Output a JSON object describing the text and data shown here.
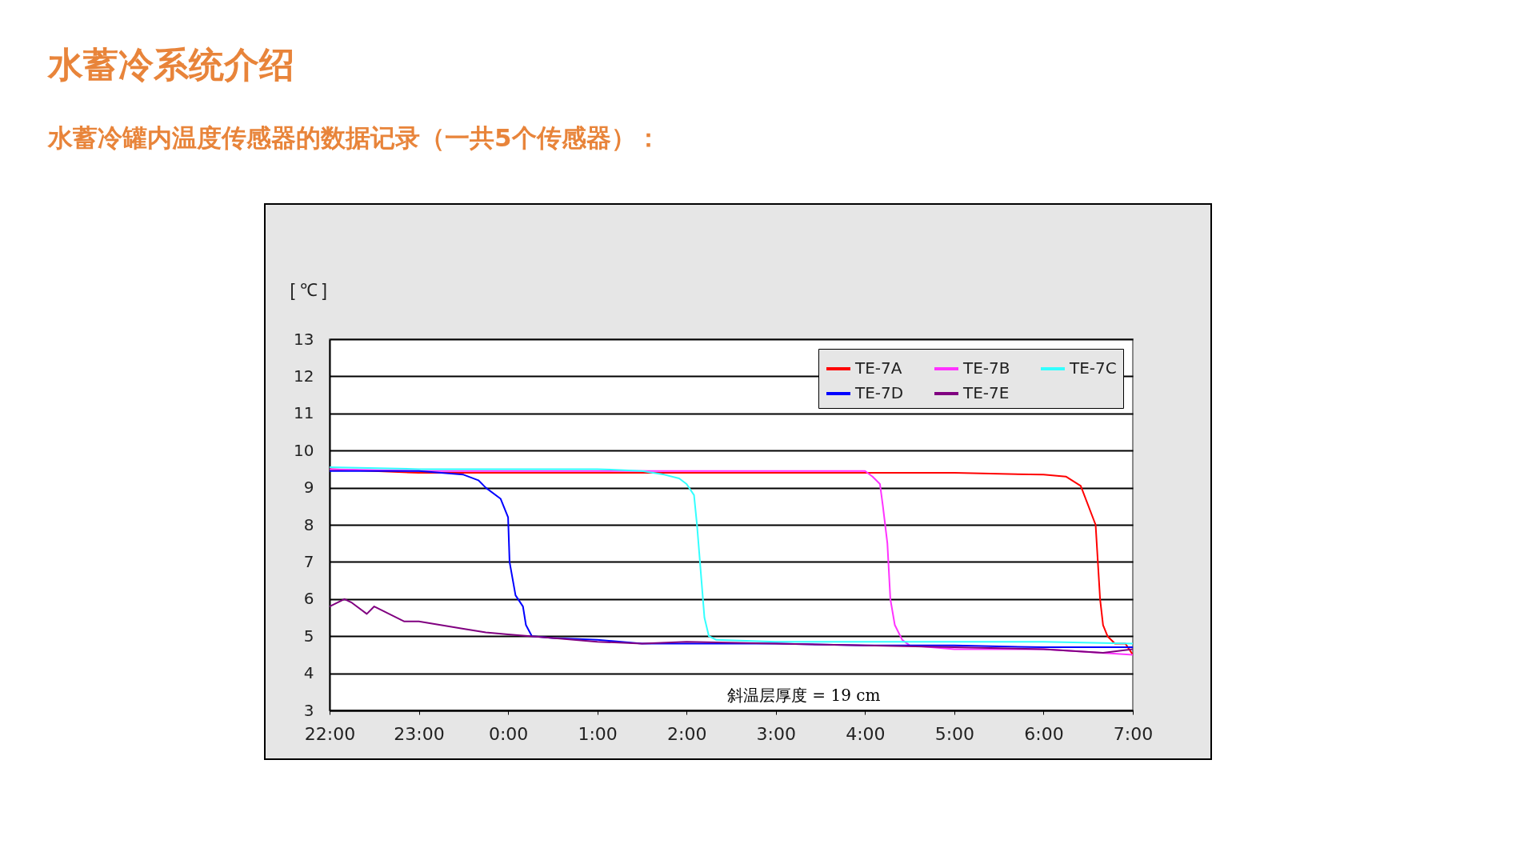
{
  "chart_data": {
    "type": "line",
    "title": "水蓄冷系统介绍",
    "subtitle": "水蓄冷罐内温度传感器的数据记录（一共5个传感器）：",
    "ylabel": "[ ℃ ]",
    "series": [
      {
        "name": "TE-7A",
        "color": "#ff0000",
        "x": [
          "--01-01T22:00",
          "--01-01T23:00",
          "--01-02T00:00",
          "--01-02T01:00",
          "--01-02T02:00",
          "--01-02T03:00",
          "--01-02T04:00",
          "--01-02T05:00",
          "--01-02T06:00",
          "--01-02T06:15",
          "--01-02T06:25",
          "--01-02T06:35",
          "--01-02T06:38",
          "--01-02T06:40",
          "--01-02T06:43",
          "--01-02T06:48",
          "--01-02T06:55",
          "--01-02T07:00"
        ],
        "values": [
          9.5,
          9.4,
          9.4,
          9.4,
          9.4,
          9.4,
          9.4,
          9.4,
          9.35,
          9.3,
          9.05,
          8.0,
          6.0,
          5.3,
          5.0,
          4.8,
          4.8,
          4.5
        ]
      },
      {
        "name": "TE-7B",
        "color": "#ff33ff",
        "x": [
          "--01-01T22:00",
          "--01-01T23:00",
          "--01-02T00:00",
          "--01-02T01:00",
          "--01-02T02:00",
          "--01-02T03:00",
          "--01-02T04:00",
          "--01-02T04:05",
          "--01-02T04:10",
          "--01-02T04:12",
          "--01-02T04:15",
          "--01-02T04:17",
          "--01-02T04:20",
          "--01-02T04:25",
          "--01-02T04:30",
          "--01-02T05:00",
          "--01-02T06:00",
          "--01-02T07:00"
        ],
        "values": [
          9.5,
          9.45,
          9.45,
          9.45,
          9.45,
          9.45,
          9.45,
          9.3,
          9.1,
          8.5,
          7.5,
          6.0,
          5.3,
          4.9,
          4.75,
          4.65,
          4.65,
          4.5
        ]
      },
      {
        "name": "TE-7C",
        "color": "#33ffff",
        "x": [
          "--01-01T22:00",
          "--01-01T23:00",
          "--01-02T00:00",
          "--01-02T01:00",
          "--01-02T01:30",
          "--01-02T01:45",
          "--01-02T01:55",
          "--01-02T02:00",
          "--01-02T02:05",
          "--01-02T02:07",
          "--01-02T02:10",
          "--01-02T02:12",
          "--01-02T02:15",
          "--01-02T02:20",
          "--01-02T03:00",
          "--01-02T04:00",
          "--01-02T05:00",
          "--01-02T06:00",
          "--01-02T07:00"
        ],
        "values": [
          9.55,
          9.5,
          9.5,
          9.5,
          9.45,
          9.35,
          9.25,
          9.1,
          8.8,
          8.0,
          6.5,
          5.5,
          5.0,
          4.9,
          4.85,
          4.85,
          4.85,
          4.85,
          4.8
        ]
      },
      {
        "name": "TE-7D",
        "color": "#0000ff",
        "x": [
          "--01-01T22:00",
          "--01-01T23:00",
          "--01-01T23:30",
          "--01-01T23:40",
          "--01-01T23:45",
          "--01-01T23:55",
          "--01-02T00:00",
          "--01-02T00:01",
          "--01-02T00:05",
          "--01-02T00:10",
          "--01-02T00:12",
          "--01-02T00:16",
          "--01-02T00:30",
          "--01-02T01:00",
          "--01-02T01:30",
          "--01-02T02:00",
          "--01-02T03:00",
          "--01-02T04:00",
          "--01-02T05:00",
          "--01-02T06:00",
          "--01-02T07:00"
        ],
        "values": [
          9.45,
          9.45,
          9.35,
          9.2,
          9.0,
          8.7,
          8.2,
          7.0,
          6.1,
          5.8,
          5.3,
          5.0,
          4.95,
          4.9,
          4.8,
          4.8,
          4.8,
          4.75,
          4.75,
          4.7,
          4.7
        ]
      },
      {
        "name": "TE-7E",
        "color": "#800080",
        "x": [
          "--01-01T22:00",
          "--01-01T22:10",
          "--01-01T22:15",
          "--01-01T22:25",
          "--01-01T22:30",
          "--01-01T22:40",
          "--01-01T22:50",
          "--01-01T23:00",
          "--01-01T23:30",
          "--01-01T23:45",
          "--01-02T00:00",
          "--01-02T00:15",
          "--01-02T00:30",
          "--01-02T01:00",
          "--01-02T01:30",
          "--01-02T02:00",
          "--01-02T03:00",
          "--01-02T04:00",
          "--01-02T05:00",
          "--01-02T06:00",
          "--01-02T06:40",
          "--01-02T07:00"
        ],
        "values": [
          5.8,
          6.0,
          5.9,
          5.6,
          5.8,
          5.6,
          5.4,
          5.4,
          5.2,
          5.1,
          5.05,
          5.0,
          4.95,
          4.85,
          4.8,
          4.85,
          4.8,
          4.75,
          4.7,
          4.65,
          4.55,
          4.65
        ]
      }
    ],
    "xlim": [
      "--01-01T22:00",
      "--01-02T07:00"
    ],
    "xticks": [
      {
        "value": "--01-01T22:00",
        "label": "22:00"
      },
      {
        "value": "--01-01T23:00",
        "label": "23:00"
      },
      {
        "value": "--01-02T00:00",
        "label": "0:00"
      },
      {
        "value": "--01-02T01:00",
        "label": "1:00"
      },
      {
        "value": "--01-02T02:00",
        "label": "2:00"
      },
      {
        "value": "--01-02T03:00",
        "label": "3:00"
      },
      {
        "value": "--01-02T04:00",
        "label": "4:00"
      },
      {
        "value": "--01-02T05:00",
        "label": "5:00"
      },
      {
        "value": "--01-02T06:00",
        "label": "6:00"
      },
      {
        "value": "--01-02T07:00",
        "label": "7:00"
      }
    ],
    "ylim": [
      3,
      13
    ],
    "yticks": [
      3,
      4,
      5,
      6,
      7,
      8,
      9,
      10,
      11,
      12,
      13
    ],
    "grid": "y",
    "legend": "top right",
    "annotations": [
      "斜温层厚度 = 19 cm"
    ]
  }
}
